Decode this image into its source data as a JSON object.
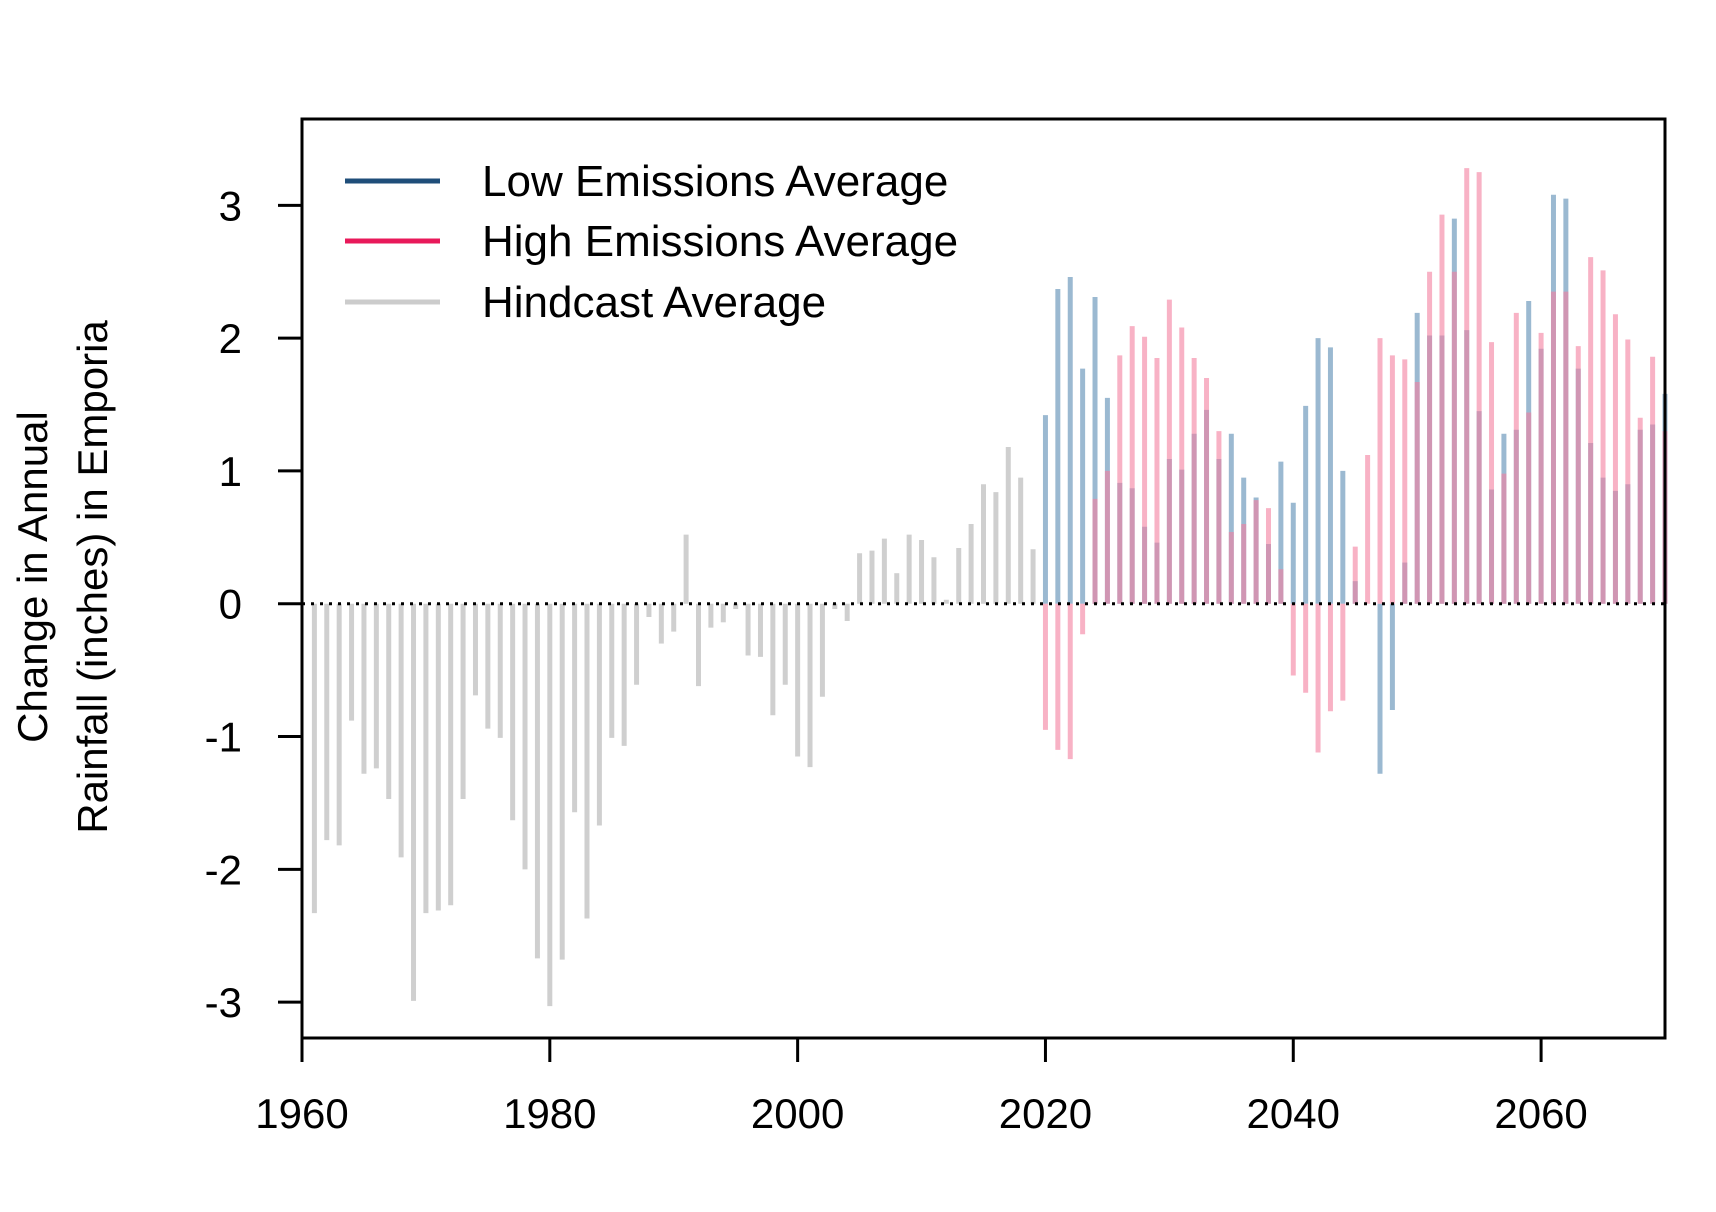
{
  "chart_data": {
    "type": "bar",
    "ylabel_line1": "Change in Annual",
    "ylabel_line2": "Rainfall (inches) in Emporia",
    "xlim": [
      1960,
      2070
    ],
    "ylim": [
      -3.27,
      3.65
    ],
    "x_ticks": [
      1960,
      1980,
      2000,
      2020,
      2040,
      2060
    ],
    "y_ticks": [
      -3,
      -2,
      -1,
      0,
      1,
      2,
      3
    ],
    "zero_line": {
      "y": 0,
      "style": "dotted"
    },
    "legend": {
      "position": "top-left",
      "entries": [
        {
          "label": "Low Emissions Average",
          "color": "#1f4e79"
        },
        {
          "label": "High Emissions Average",
          "color": "#e8195a"
        },
        {
          "label": "Hindcast Average",
          "color": "#cccccc"
        }
      ]
    },
    "series": [
      {
        "name": "Hindcast Average",
        "color": "#cfcfcf",
        "x": [
          1961,
          1962,
          1963,
          1964,
          1965,
          1966,
          1967,
          1968,
          1969,
          1970,
          1971,
          1972,
          1973,
          1974,
          1975,
          1976,
          1977,
          1978,
          1979,
          1980,
          1981,
          1982,
          1983,
          1984,
          1985,
          1986,
          1987,
          1988,
          1989,
          1990,
          1991,
          1992,
          1993,
          1994,
          1995,
          1996,
          1997,
          1998,
          1999,
          2000,
          2001,
          2002,
          2003,
          2004,
          2005,
          2006,
          2007,
          2008,
          2009,
          2010,
          2011,
          2012,
          2013,
          2014,
          2015,
          2016,
          2017,
          2018,
          2019
        ],
        "values": [
          -2.33,
          -1.78,
          -1.82,
          -0.88,
          -1.28,
          -1.24,
          -1.47,
          -1.91,
          -2.99,
          -2.33,
          -2.31,
          -2.27,
          -1.47,
          -0.69,
          -0.94,
          -1.01,
          -1.63,
          -2.0,
          -2.67,
          -3.03,
          -2.68,
          -1.57,
          -2.37,
          -1.67,
          -1.01,
          -1.07,
          -0.61,
          -0.1,
          -0.3,
          -0.21,
          0.52,
          -0.62,
          -0.18,
          -0.14,
          -0.04,
          -0.39,
          -0.4,
          -0.84,
          -0.61,
          -1.15,
          -1.23,
          -0.7,
          -0.04,
          -0.13,
          0.38,
          0.4,
          0.49,
          0.23,
          0.52,
          0.48,
          0.35,
          0.03,
          0.42,
          0.6,
          0.9,
          0.84,
          1.18,
          0.95,
          0.41
        ]
      },
      {
        "name": "Low Emissions Average",
        "color": "#5a8cb4",
        "x": [
          2020,
          2021,
          2022,
          2023,
          2024,
          2025,
          2026,
          2027,
          2028,
          2029,
          2030,
          2031,
          2032,
          2033,
          2034,
          2035,
          2036,
          2037,
          2038,
          2039,
          2040,
          2041,
          2042,
          2043,
          2044,
          2045,
          2046,
          2047,
          2048,
          2049,
          2050,
          2051,
          2052,
          2053,
          2054,
          2055,
          2056,
          2057,
          2058,
          2059,
          2060,
          2061,
          2062,
          2063,
          2064,
          2065,
          2066,
          2067,
          2068,
          2069,
          2070
        ],
        "values": [
          1.42,
          2.37,
          2.46,
          1.77,
          2.31,
          1.55,
          0.91,
          0.87,
          0.58,
          0.46,
          1.09,
          1.01,
          1.28,
          1.46,
          1.09,
          1.28,
          0.95,
          0.8,
          0.45,
          1.07,
          0.76,
          1.49,
          2.0,
          1.93,
          1.0,
          0.17,
          0.0,
          -1.28,
          -0.8,
          0.31,
          2.19,
          2.02,
          2.02,
          2.9,
          2.06,
          1.45,
          0.86,
          1.28,
          1.31,
          2.28,
          1.92,
          3.08,
          3.05,
          1.77,
          1.21,
          0.95,
          0.85,
          0.9,
          1.31,
          1.35,
          1.58
        ]
      },
      {
        "name": "High Emissions Average",
        "color": "#f47fa0",
        "x": [
          2020,
          2021,
          2022,
          2023,
          2024,
          2025,
          2026,
          2027,
          2028,
          2029,
          2030,
          2031,
          2032,
          2033,
          2034,
          2035,
          2036,
          2037,
          2038,
          2039,
          2040,
          2041,
          2042,
          2043,
          2044,
          2045,
          2046,
          2047,
          2048,
          2049,
          2050,
          2051,
          2052,
          2053,
          2054,
          2055,
          2056,
          2057,
          2058,
          2059,
          2060,
          2061,
          2062,
          2063,
          2064,
          2065,
          2066,
          2067,
          2068,
          2069,
          2070
        ],
        "values": [
          -0.95,
          -1.1,
          -1.17,
          -0.23,
          0.79,
          1.0,
          1.87,
          2.09,
          2.01,
          1.85,
          2.29,
          2.08,
          1.85,
          1.7,
          1.3,
          0.54,
          0.6,
          0.78,
          0.72,
          0.26,
          -0.54,
          -0.67,
          -1.12,
          -0.81,
          -0.73,
          0.43,
          1.12,
          2.0,
          1.87,
          1.84,
          1.67,
          2.5,
          2.93,
          2.5,
          3.28,
          3.25,
          1.97,
          0.98,
          2.19,
          1.44,
          2.04,
          2.35,
          2.35,
          1.94,
          2.61,
          2.51,
          2.18,
          1.99,
          1.4,
          1.86,
          1.3
        ]
      }
    ]
  }
}
